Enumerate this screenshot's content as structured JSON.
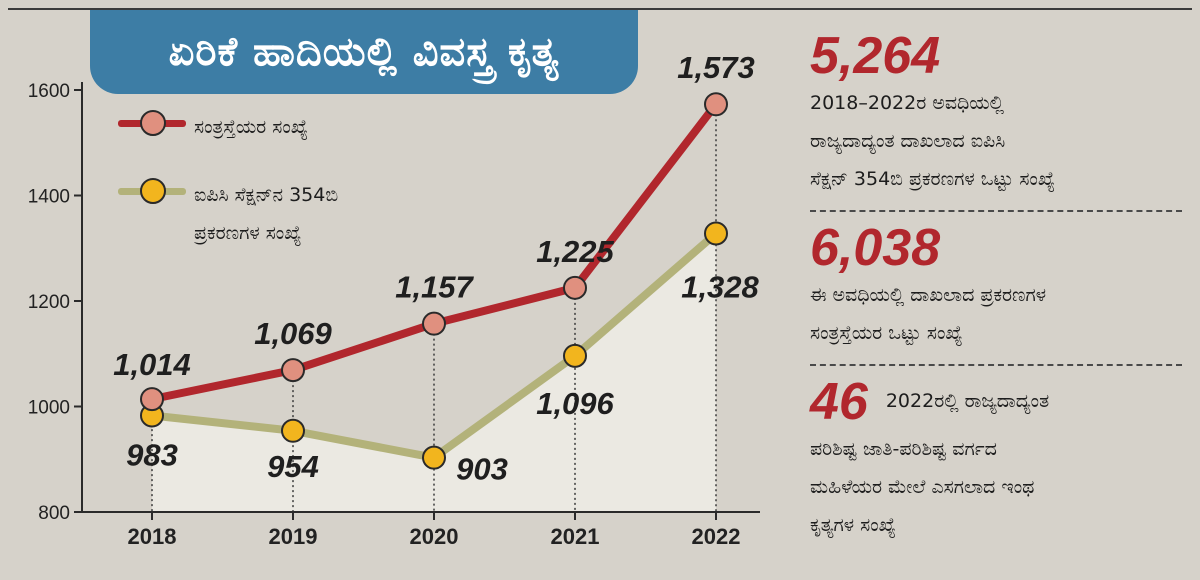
{
  "title": "ಏರಿಕೆ ಹಾದಿಯಲ್ಲಿ ವಿವಸ್ತ್ರ ಕೃತ್ಯ",
  "colors": {
    "background": "#d6d2ca",
    "title_banner": "#3d7da5",
    "victims_line": "#b1272d",
    "victims_marker": "#e0907f",
    "cases_line": "#b3b27a",
    "cases_marker": "#f2b51e",
    "area_fill": "#ebe9e2",
    "highlight_number": "#b1272d"
  },
  "chart_data": {
    "type": "line",
    "categories": [
      "2018",
      "2019",
      "2020",
      "2021",
      "2022"
    ],
    "ylim": [
      800,
      1600
    ],
    "yticks": [
      "800",
      "1000",
      "1200",
      "1400",
      "1600"
    ],
    "grid": false,
    "legend_position": "top-left",
    "series": [
      {
        "name": "ಸಂತ್ರಸ್ತೆಯರ ಸಂಖ್ಯೆ",
        "values": [
          1014,
          1069,
          1157,
          1225,
          1573
        ],
        "labels": [
          "1,014",
          "1,069",
          "1,157",
          "1,225",
          "1,573"
        ]
      },
      {
        "name": "ಐಪಿಸಿ ಸೆಕ್ಷನ್‌ನ 354ಬಿ ಪ್ರಕರಣಗಳ ಸಂಖ್ಯೆ",
        "values": [
          983,
          954,
          903,
          1096,
          1328
        ],
        "labels": [
          "983",
          "954",
          "903",
          "1,096",
          "1,328"
        ]
      }
    ]
  },
  "legend": {
    "victims": "ಸಂತ್ರಸ್ತೆಯರ ಸಂಖ್ಯೆ",
    "cases_line1": "ಐಪಿಸಿ ಸೆಕ್ಷನ್‌ನ 354ಬಿ",
    "cases_line2": "ಪ್ರಕರಣಗಳ ಸಂಖ್ಯೆ"
  },
  "stats": [
    {
      "number": "5,264",
      "lines": [
        "2018–2022ರ ಅವಧಿಯಲ್ಲಿ",
        "ರಾಜ್ಯದಾದ್ಯಂತ ದಾಖಲಾದ ಐಪಿಸಿ",
        "ಸೆಕ್ಷನ್ 354ಬಿ ಪ್ರಕರಣಗಳ ಒಟ್ಟು ಸಂಖ್ಯೆ"
      ]
    },
    {
      "number": "6,038",
      "lines": [
        "ಈ ಅವಧಿಯಲ್ಲಿ ದಾಖಲಾದ ಪ್ರಕರಣಗಳ",
        "ಸಂತ್ರಸ್ತೆಯರ ಒಟ್ಟು ಸಂಖ್ಯೆ"
      ]
    },
    {
      "number": "46",
      "lines": [
        "2022ರಲ್ಲಿ ರಾಜ್ಯದಾದ್ಯಂತ",
        "ಪರಿಶಿಷ್ಟ ಜಾತಿ-ಪರಿಶಿಷ್ಟ ವರ್ಗದ",
        "ಮಹಿಳೆಯರ ಮೇಲೆ ಎಸಗಲಾದ ಇಂಥ",
        "ಕೃತ್ಯಗಳ ಸಂಖ್ಯೆ"
      ]
    }
  ]
}
